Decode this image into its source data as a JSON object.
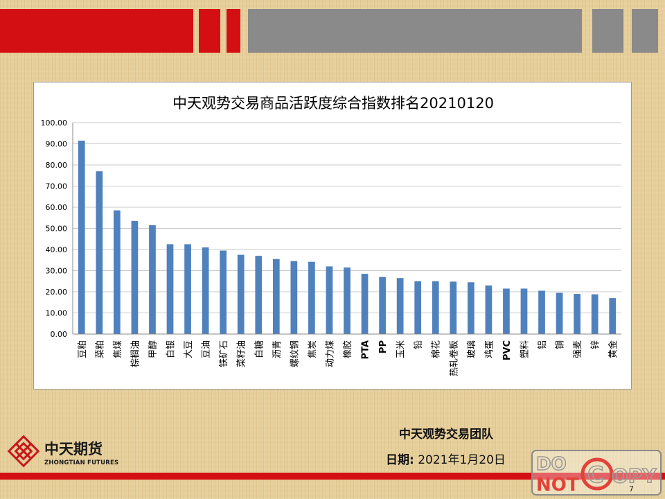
{
  "chart_data": {
    "type": "bar",
    "title": "中天观势交易商品活跃度综合指数排名20210120",
    "categories": [
      "豆粕",
      "菜粕",
      "焦煤",
      "棕榈油",
      "甲醇",
      "白银",
      "大豆",
      "豆油",
      "铁矿石",
      "菜籽油",
      "白糖",
      "沥青",
      "螺纹钢",
      "焦炭",
      "动力煤",
      "橡胶",
      "PTA",
      "PP",
      "玉米",
      "铅",
      "棉花",
      "热轧卷板",
      "玻璃",
      "鸡蛋",
      "PVC",
      "塑料",
      "铝",
      "铜",
      "强麦",
      "锌",
      "黄金"
    ],
    "values": [
      91.5,
      77.0,
      58.5,
      53.5,
      51.5,
      42.5,
      42.5,
      41.0,
      39.5,
      37.5,
      37.0,
      35.5,
      34.5,
      34.2,
      32.0,
      31.5,
      28.5,
      27.0,
      26.5,
      25.0,
      25.0,
      24.8,
      24.5,
      23.0,
      21.5,
      21.5,
      20.5,
      19.5,
      19.0,
      18.8,
      17.0
    ],
    "ylim": [
      0,
      100
    ],
    "ytick_step": 10,
    "ytick_labels": [
      "0.00",
      "10.00",
      "20.00",
      "30.00",
      "40.00",
      "50.00",
      "60.00",
      "70.00",
      "80.00",
      "90.00",
      "100.00"
    ],
    "xlabel": "",
    "ylabel": "",
    "grid": true,
    "bar_color": "#4f81bd"
  },
  "footer": {
    "team": "中天观势交易团队",
    "date_label": "日期:",
    "date_value": "2021年1月20日",
    "page_number": "7"
  },
  "logo": {
    "name_cn": "中天期货",
    "name_en": "ZHONGTIAN FUTURES"
  },
  "stamp": {
    "line1": "DO",
    "line2": "NOT",
    "word": "OPY",
    "c_letter": "C"
  },
  "colors": {
    "accent_red": "#d40f14",
    "header_gray": "#8a8a8a",
    "background": "#e6cf9a"
  }
}
